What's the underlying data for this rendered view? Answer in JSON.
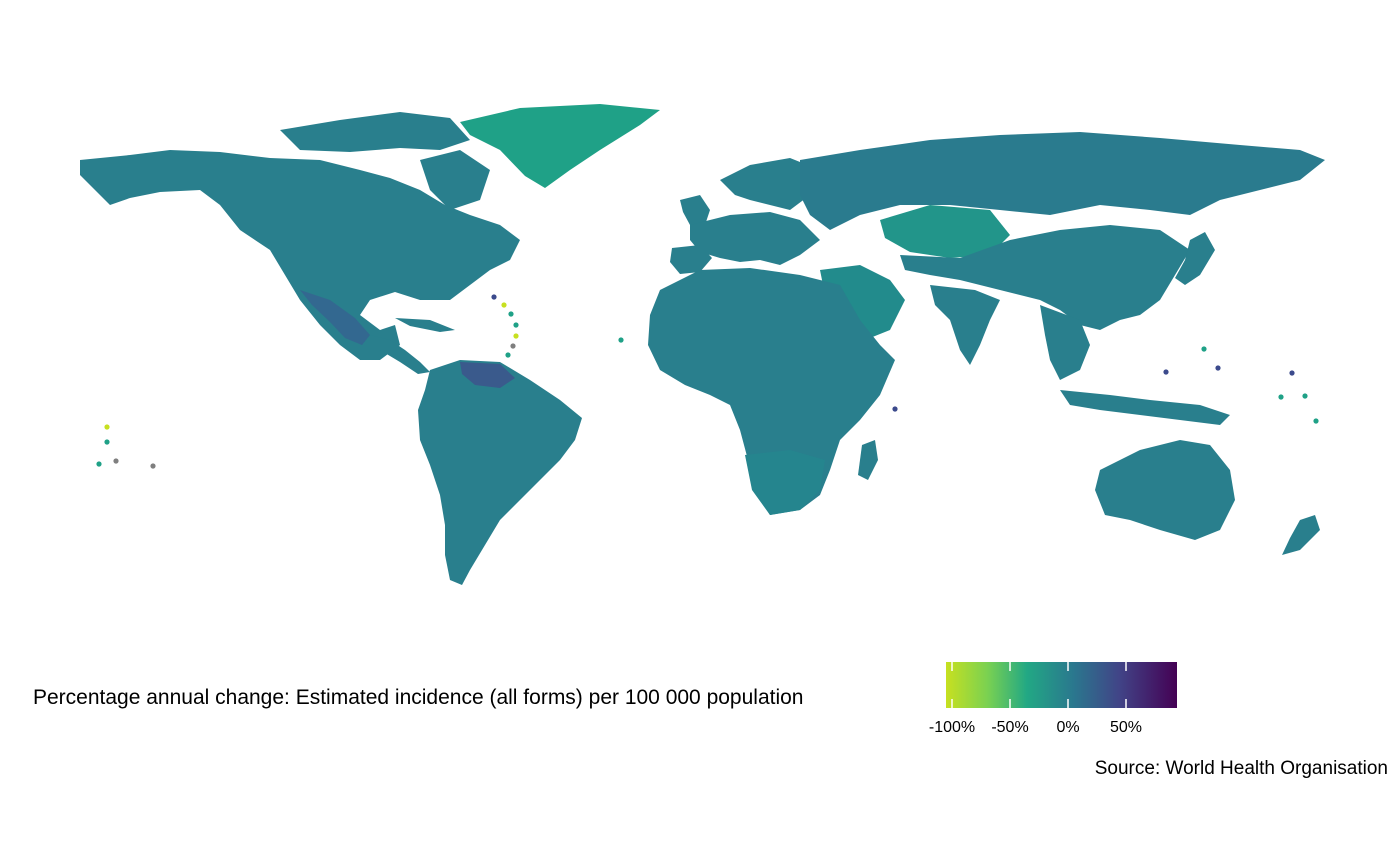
{
  "legend": {
    "title": "Percentage annual change: Estimated incidence (all forms) per 100 000 population",
    "scale": "viridis (reversed)",
    "range": [
      -110,
      95
    ],
    "ticks": [
      {
        "value": -100,
        "label": "-100%"
      },
      {
        "value": -50,
        "label": "-50%"
      },
      {
        "value": 0,
        "label": "0%"
      },
      {
        "value": 50,
        "label": "50%"
      }
    ],
    "colors": {
      "low": "#c7e020",
      "mid_low": "#4ac16d",
      "mid": "#1fa187",
      "mid_high": "#2a788e",
      "high_mid": "#414487",
      "high": "#440154",
      "missing": "#7f7f7f"
    }
  },
  "caption": "Source: World Health Organisation",
  "map_colors": {
    "default_land": "#297f8d",
    "greenland": "#1fa187",
    "russia": "#2a7b8e",
    "kazakhstan": "#22958a",
    "saudi": "#228b8c",
    "southern_africa": "#25858e",
    "guyana": "#3a5a8c",
    "mexico": "#336890",
    "island_low": "#c7e020",
    "island_mid": "#1fa187",
    "island_high": "#3b4a8c",
    "island_missing": "#7f7f7f"
  }
}
